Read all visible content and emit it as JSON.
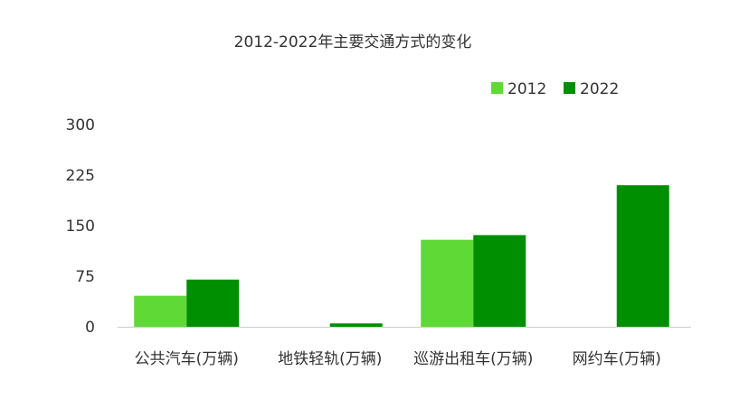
{
  "chart_data": {
    "type": "bar",
    "title": "2012-2022年主要交通方式的变化",
    "xlabel": "",
    "ylabel": "",
    "categories": [
      "公共汽车(万辆)",
      "地铁轻轨(万辆)",
      "巡游出租车(万辆)",
      "网约车(万辆)"
    ],
    "series": [
      {
        "name": "2012",
        "values": [
          46,
          null,
          129,
          null
        ],
        "color": "#5fd936"
      },
      {
        "name": "2022",
        "values": [
          70,
          5,
          136,
          210
        ],
        "color": "#008f00"
      }
    ],
    "ylim": [
      0,
      300
    ],
    "yticks": [
      0,
      75,
      150,
      225,
      300
    ],
    "grid": false,
    "legend": "top-right"
  }
}
